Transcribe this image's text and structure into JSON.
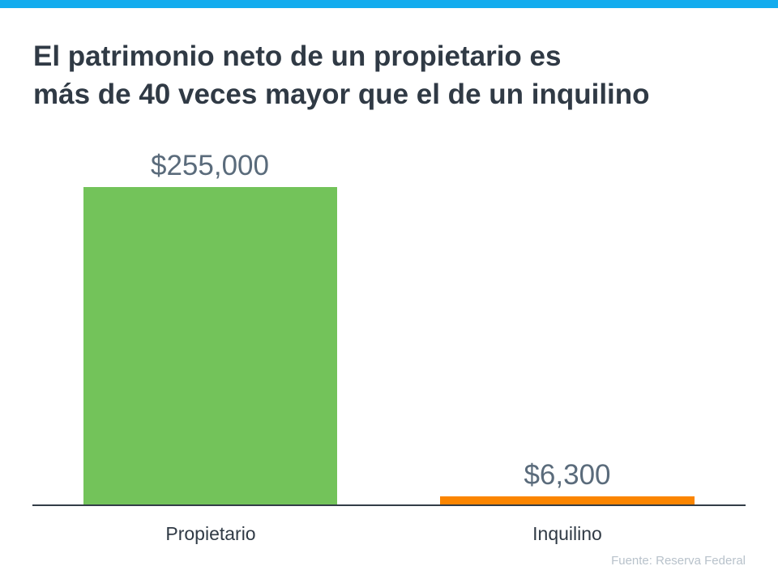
{
  "theme": {
    "top_bar_color": "#13acee",
    "owner_color": "#73c35a",
    "renter_color": "#fb8500"
  },
  "title_line1": "El patrimonio neto de un propietario es",
  "title_line2": "más de 40 veces mayor que el de un inquilino",
  "source": "Fuente: Reserva Federal",
  "labels": {
    "owner_value": "$255,000",
    "renter_value": "$6,300",
    "owner_cat": "Propietario",
    "renter_cat": "Inquilino"
  },
  "chart_data": {
    "type": "bar",
    "title": "El patrimonio neto de un propietario es más de 40 veces mayor que el de un inquilino",
    "categories": [
      "Propietario",
      "Inquilino"
    ],
    "values": [
      255000,
      6300
    ],
    "data_labels": [
      "$255,000",
      "$6,300"
    ],
    "colors": [
      "#73c35a",
      "#fb8500"
    ],
    "xlabel": "",
    "ylabel": "",
    "ylim": [
      0,
      255000
    ],
    "grid": false,
    "legend": null,
    "annotations": [
      "Fuente: Reserva Federal"
    ]
  }
}
